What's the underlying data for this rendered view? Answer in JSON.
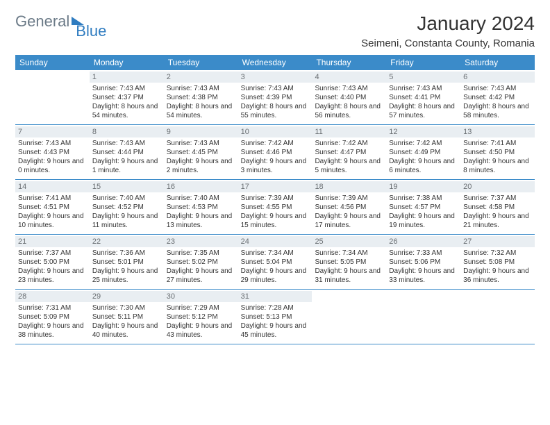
{
  "brand": {
    "general": "General",
    "blue": "Blue"
  },
  "title": "January 2024",
  "location": "Seimeni, Constanta County, Romania",
  "colors": {
    "header_bg": "#3b8bc9",
    "header_text": "#ffffff",
    "daynum_bg": "#e9eef2",
    "daynum_text": "#6a6f73",
    "border": "#3b8bc9",
    "logo_gray": "#6b7a87",
    "logo_blue": "#2f7cc0"
  },
  "day_headers": [
    "Sunday",
    "Monday",
    "Tuesday",
    "Wednesday",
    "Thursday",
    "Friday",
    "Saturday"
  ],
  "weeks": [
    [
      {
        "blank": true
      },
      {
        "n": "1",
        "sr": "7:43 AM",
        "ss": "4:37 PM",
        "dl": "8 hours and 54 minutes."
      },
      {
        "n": "2",
        "sr": "7:43 AM",
        "ss": "4:38 PM",
        "dl": "8 hours and 54 minutes."
      },
      {
        "n": "3",
        "sr": "7:43 AM",
        "ss": "4:39 PM",
        "dl": "8 hours and 55 minutes."
      },
      {
        "n": "4",
        "sr": "7:43 AM",
        "ss": "4:40 PM",
        "dl": "8 hours and 56 minutes."
      },
      {
        "n": "5",
        "sr": "7:43 AM",
        "ss": "4:41 PM",
        "dl": "8 hours and 57 minutes."
      },
      {
        "n": "6",
        "sr": "7:43 AM",
        "ss": "4:42 PM",
        "dl": "8 hours and 58 minutes."
      }
    ],
    [
      {
        "n": "7",
        "sr": "7:43 AM",
        "ss": "4:43 PM",
        "dl": "9 hours and 0 minutes."
      },
      {
        "n": "8",
        "sr": "7:43 AM",
        "ss": "4:44 PM",
        "dl": "9 hours and 1 minute."
      },
      {
        "n": "9",
        "sr": "7:43 AM",
        "ss": "4:45 PM",
        "dl": "9 hours and 2 minutes."
      },
      {
        "n": "10",
        "sr": "7:42 AM",
        "ss": "4:46 PM",
        "dl": "9 hours and 3 minutes."
      },
      {
        "n": "11",
        "sr": "7:42 AM",
        "ss": "4:47 PM",
        "dl": "9 hours and 5 minutes."
      },
      {
        "n": "12",
        "sr": "7:42 AM",
        "ss": "4:49 PM",
        "dl": "9 hours and 6 minutes."
      },
      {
        "n": "13",
        "sr": "7:41 AM",
        "ss": "4:50 PM",
        "dl": "9 hours and 8 minutes."
      }
    ],
    [
      {
        "n": "14",
        "sr": "7:41 AM",
        "ss": "4:51 PM",
        "dl": "9 hours and 10 minutes."
      },
      {
        "n": "15",
        "sr": "7:40 AM",
        "ss": "4:52 PM",
        "dl": "9 hours and 11 minutes."
      },
      {
        "n": "16",
        "sr": "7:40 AM",
        "ss": "4:53 PM",
        "dl": "9 hours and 13 minutes."
      },
      {
        "n": "17",
        "sr": "7:39 AM",
        "ss": "4:55 PM",
        "dl": "9 hours and 15 minutes."
      },
      {
        "n": "18",
        "sr": "7:39 AM",
        "ss": "4:56 PM",
        "dl": "9 hours and 17 minutes."
      },
      {
        "n": "19",
        "sr": "7:38 AM",
        "ss": "4:57 PM",
        "dl": "9 hours and 19 minutes."
      },
      {
        "n": "20",
        "sr": "7:37 AM",
        "ss": "4:58 PM",
        "dl": "9 hours and 21 minutes."
      }
    ],
    [
      {
        "n": "21",
        "sr": "7:37 AM",
        "ss": "5:00 PM",
        "dl": "9 hours and 23 minutes."
      },
      {
        "n": "22",
        "sr": "7:36 AM",
        "ss": "5:01 PM",
        "dl": "9 hours and 25 minutes."
      },
      {
        "n": "23",
        "sr": "7:35 AM",
        "ss": "5:02 PM",
        "dl": "9 hours and 27 minutes."
      },
      {
        "n": "24",
        "sr": "7:34 AM",
        "ss": "5:04 PM",
        "dl": "9 hours and 29 minutes."
      },
      {
        "n": "25",
        "sr": "7:34 AM",
        "ss": "5:05 PM",
        "dl": "9 hours and 31 minutes."
      },
      {
        "n": "26",
        "sr": "7:33 AM",
        "ss": "5:06 PM",
        "dl": "9 hours and 33 minutes."
      },
      {
        "n": "27",
        "sr": "7:32 AM",
        "ss": "5:08 PM",
        "dl": "9 hours and 36 minutes."
      }
    ],
    [
      {
        "n": "28",
        "sr": "7:31 AM",
        "ss": "5:09 PM",
        "dl": "9 hours and 38 minutes."
      },
      {
        "n": "29",
        "sr": "7:30 AM",
        "ss": "5:11 PM",
        "dl": "9 hours and 40 minutes."
      },
      {
        "n": "30",
        "sr": "7:29 AM",
        "ss": "5:12 PM",
        "dl": "9 hours and 43 minutes."
      },
      {
        "n": "31",
        "sr": "7:28 AM",
        "ss": "5:13 PM",
        "dl": "9 hours and 45 minutes."
      },
      {
        "blank": true
      },
      {
        "blank": true
      },
      {
        "blank": true
      }
    ]
  ],
  "labels": {
    "sunrise": "Sunrise:",
    "sunset": "Sunset:",
    "daylight": "Daylight:"
  }
}
